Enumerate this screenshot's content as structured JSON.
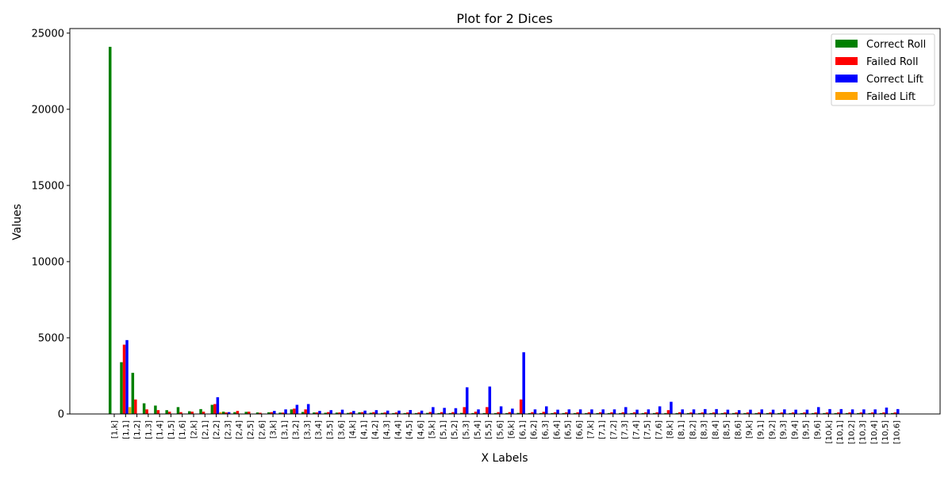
{
  "chart_data": {
    "type": "bar",
    "title": "Plot for 2 Dices",
    "xlabel": "X Labels",
    "ylabel": "Values",
    "ylim": [
      0,
      25300
    ],
    "yticks": [
      0,
      5000,
      10000,
      15000,
      20000,
      25000
    ],
    "grid": false,
    "legend_position": "top-right",
    "categories": [
      "[1,k]",
      "[1,1]",
      "[1,2]",
      "[1,3]",
      "[1,4]",
      "[1,5]",
      "[1,6]",
      "[2,k]",
      "[2,1]",
      "[2,2]",
      "[2,3]",
      "[2,4]",
      "[2,5]",
      "[2,6]",
      "[3,k]",
      "[3,1]",
      "[3,2]",
      "[3,3]",
      "[3,4]",
      "[3,5]",
      "[3,6]",
      "[4,k]",
      "[4,1]",
      "[4,2]",
      "[4,3]",
      "[4,4]",
      "[4,5]",
      "[4,6]",
      "[5,k]",
      "[5,1]",
      "[5,2]",
      "[5,3]",
      "[5,4]",
      "[5,5]",
      "[5,6]",
      "[6,k]",
      "[6,1]",
      "[6,2]",
      "[6,3]",
      "[6,4]",
      "[6,5]",
      "[6,6]",
      "[7,k]",
      "[7,1]",
      "[7,2]",
      "[7,3]",
      "[7,4]",
      "[7,5]",
      "[7,6]",
      "[8,k]",
      "[8,1]",
      "[8,2]",
      "[8,3]",
      "[8,4]",
      "[8,5]",
      "[8,6]",
      "[9,k]",
      "[9,1]",
      "[9,2]",
      "[9,3]",
      "[9,4]",
      "[9,5]",
      "[9,6]",
      "[10,k]",
      "[10,1]",
      "[10,2]",
      "[10,3]",
      "[10,4]",
      "[10,5]",
      "[10,6]"
    ],
    "series": [
      {
        "name": "Correct Roll",
        "color": "#008000",
        "values": [
          24100,
          3400,
          2700,
          700,
          550,
          250,
          450,
          180,
          320,
          600,
          150,
          120,
          140,
          100,
          110,
          90,
          300,
          130,
          100,
          80,
          90,
          70,
          110,
          80,
          70,
          60,
          60,
          60,
          70,
          60,
          60,
          70,
          60,
          60,
          60,
          60,
          70,
          60,
          60,
          60,
          60,
          60,
          60,
          60,
          60,
          60,
          60,
          60,
          60,
          60,
          60,
          60,
          60,
          60,
          60,
          60,
          60,
          60,
          60,
          60,
          60,
          60,
          60,
          60,
          60,
          60,
          60,
          60,
          60,
          60
        ]
      },
      {
        "name": "Failed Roll",
        "color": "#ff0000",
        "values": [
          0,
          4550,
          950,
          300,
          250,
          150,
          120,
          150,
          150,
          650,
          100,
          200,
          150,
          80,
          120,
          90,
          350,
          300,
          100,
          120,
          100,
          110,
          120,
          120,
          100,
          100,
          100,
          100,
          130,
          120,
          120,
          450,
          150,
          450,
          120,
          120,
          950,
          120,
          140,
          110,
          110,
          110,
          110,
          110,
          110,
          110,
          110,
          110,
          110,
          250,
          110,
          100,
          100,
          100,
          100,
          100,
          100,
          100,
          100,
          100,
          100,
          100,
          100,
          100,
          100,
          100,
          100,
          100,
          100,
          100
        ]
      },
      {
        "name": "Correct Lift",
        "color": "#0000ff",
        "values": [
          0,
          4850,
          0,
          0,
          0,
          0,
          0,
          0,
          0,
          1100,
          120,
          0,
          0,
          0,
          200,
          300,
          600,
          650,
          200,
          250,
          280,
          200,
          220,
          250,
          220,
          220,
          260,
          220,
          450,
          400,
          380,
          1750,
          300,
          1800,
          500,
          350,
          4050,
          300,
          500,
          280,
          300,
          300,
          300,
          300,
          300,
          450,
          280,
          300,
          500,
          800,
          300,
          300,
          320,
          320,
          280,
          250,
          280,
          300,
          280,
          300,
          280,
          280,
          450,
          320,
          320,
          300,
          300,
          300,
          420,
          320
        ]
      },
      {
        "name": "Failed Lift",
        "color": "#ffa500",
        "values": [
          0,
          450,
          0,
          0,
          0,
          0,
          0,
          0,
          0,
          120,
          0,
          0,
          0,
          0,
          0,
          0,
          0,
          0,
          0,
          0,
          0,
          0,
          0,
          0,
          0,
          0,
          0,
          0,
          0,
          0,
          0,
          0,
          0,
          0,
          0,
          0,
          0,
          0,
          0,
          0,
          0,
          0,
          0,
          0,
          0,
          0,
          0,
          0,
          0,
          0,
          0,
          0,
          0,
          0,
          0,
          0,
          0,
          0,
          0,
          0,
          0,
          0,
          0,
          0,
          0,
          0,
          0,
          0,
          0,
          0
        ]
      }
    ]
  }
}
